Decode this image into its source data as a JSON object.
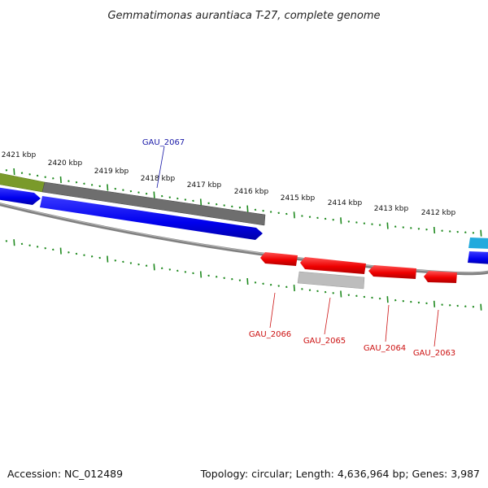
{
  "title": "Gemmatimonas aurantiaca T-27, complete genome",
  "footer": {
    "accession": "Accession: NC_012489",
    "topology": "Topology: circular; Length: 4,636,964 bp; Genes: 3,987"
  },
  "scale_labels": [
    "2421 kbp",
    "2420 kbp",
    "2419 kbp",
    "2418 kbp",
    "2417 kbp",
    "2416 kbp",
    "2415 kbp",
    "2414 kbp",
    "2413 kbp",
    "2412 kbp"
  ],
  "gene_labels": [
    "GAU_2067",
    "GAU_2066",
    "GAU_2065",
    "GAU_2064",
    "GAU_2063"
  ],
  "colors": {
    "forward_label": "#1a1aa8",
    "reverse_label": "#cc1111",
    "tick": "#1f8a1f",
    "blue_gene": "#0000ee",
    "red_gene": "#ee0000",
    "grey_gene": "#777777",
    "light_grey_gene": "#bdbdbd",
    "olive_gene": "#7a9a2a",
    "cyan_gene": "#22aadd",
    "backbone": "#808080"
  }
}
